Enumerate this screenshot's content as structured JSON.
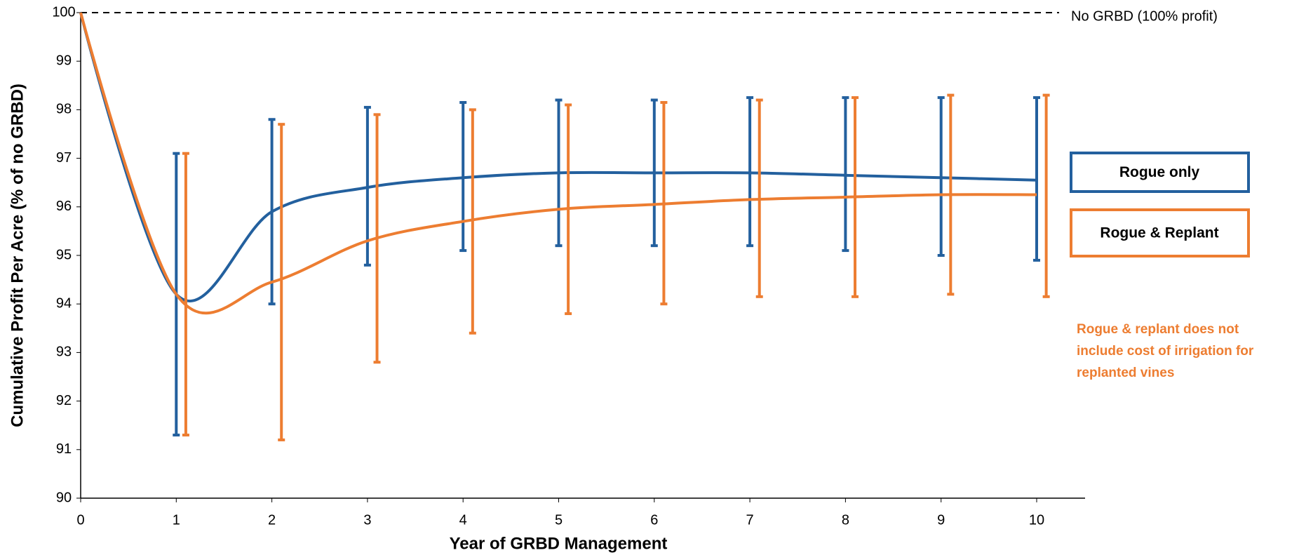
{
  "chart_data": {
    "type": "line",
    "x_label": "Year of GRBD Management",
    "y_label": "Cumulative Profit Per Acre (% of no GRBD)",
    "x": [
      0,
      1,
      2,
      3,
      4,
      5,
      6,
      7,
      8,
      9,
      10
    ],
    "xlim": [
      0,
      10
    ],
    "xticks": [
      0,
      1,
      2,
      3,
      4,
      5,
      6,
      7,
      8,
      9,
      10
    ],
    "ylim": [
      90,
      100
    ],
    "yticks": [
      90,
      91,
      92,
      93,
      94,
      95,
      96,
      97,
      98,
      99,
      100
    ],
    "reference_line": {
      "value": 100,
      "label": "No GRBD (100% profit)"
    },
    "series": [
      {
        "name": "Rogue only",
        "color": "#23609e",
        "values": [
          100,
          94.2,
          95.9,
          96.4,
          96.6,
          96.7,
          96.7,
          96.7,
          96.65,
          96.6,
          96.55
        ],
        "lower": [
          null,
          91.3,
          94.0,
          94.8,
          95.1,
          95.2,
          95.2,
          95.2,
          95.1,
          95.0,
          94.9
        ],
        "upper": [
          null,
          97.1,
          97.8,
          98.05,
          98.15,
          98.2,
          98.2,
          98.25,
          98.25,
          98.25,
          98.25
        ]
      },
      {
        "name": "Rogue & Replant",
        "color": "#ed7d31",
        "values": [
          100,
          94.2,
          94.45,
          95.3,
          95.7,
          95.95,
          96.05,
          96.15,
          96.2,
          96.25,
          96.25
        ],
        "lower": [
          null,
          91.3,
          91.2,
          92.8,
          93.4,
          93.8,
          94.0,
          94.15,
          94.15,
          94.2,
          94.15
        ],
        "upper": [
          null,
          97.1,
          97.7,
          97.9,
          98.0,
          98.1,
          98.15,
          98.2,
          98.25,
          98.3,
          98.3
        ]
      }
    ],
    "annotation": [
      "Rogue & replant does not",
      "include cost of irrigation for",
      "replanted vines"
    ]
  }
}
